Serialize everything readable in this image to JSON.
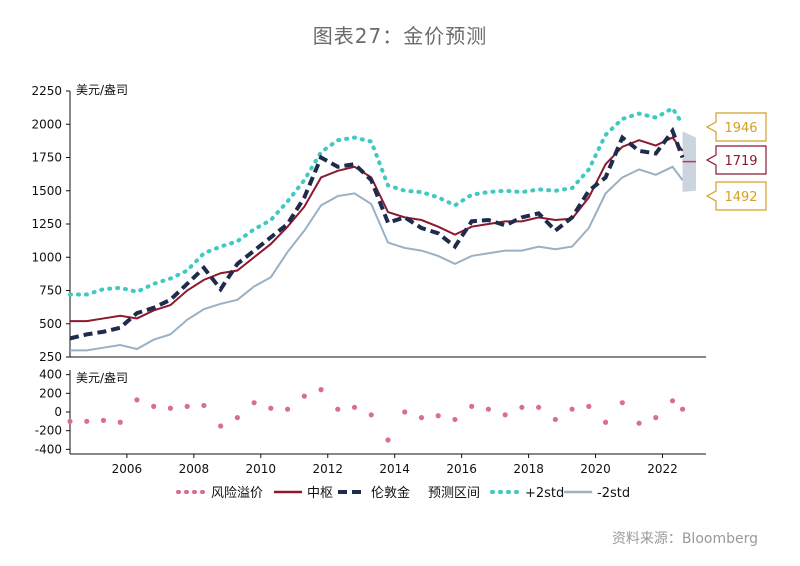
{
  "title": "图表27：金价预测",
  "source": "资料来源：Bloomberg",
  "chart_data": [
    {
      "type": "line",
      "unit_label": "美元/盎司",
      "ylim": [
        250,
        2250
      ],
      "yticks": [
        "2250",
        "2000",
        "1750",
        "1500",
        "1250",
        "1000",
        "750",
        "500",
        "250"
      ],
      "xlim": [
        2004.3,
        2023.3
      ],
      "xticks": [
        "2006",
        "2008",
        "2010",
        "2012",
        "2014",
        "2016",
        "2018",
        "2020",
        "2022"
      ],
      "x": [
        2004.3,
        2004.8,
        2005.3,
        2005.8,
        2006.3,
        2006.8,
        2007.3,
        2007.8,
        2008.3,
        2008.8,
        2009.3,
        2009.8,
        2010.3,
        2010.8,
        2011.3,
        2011.8,
        2012.3,
        2012.8,
        2013.3,
        2013.8,
        2014.3,
        2014.8,
        2015.3,
        2015.8,
        2016.3,
        2016.8,
        2017.3,
        2017.8,
        2018.3,
        2018.8,
        2019.3,
        2019.8,
        2020.3,
        2020.8,
        2021.3,
        2021.8,
        2022.3,
        2022.6
      ],
      "series": [
        {
          "name": "中枢",
          "color": "#8b1a2f",
          "style": "solid",
          "values": [
            520,
            520,
            540,
            560,
            540,
            600,
            640,
            750,
            830,
            880,
            900,
            1000,
            1100,
            1230,
            1380,
            1600,
            1650,
            1680,
            1600,
            1340,
            1300,
            1280,
            1230,
            1170,
            1230,
            1250,
            1270,
            1270,
            1300,
            1280,
            1290,
            1450,
            1700,
            1830,
            1880,
            1840,
            1900,
            1800
          ]
        },
        {
          "name": "伦敦金",
          "color": "#1f2b4d",
          "style": "dash",
          "values": [
            390,
            420,
            440,
            470,
            580,
            620,
            680,
            800,
            920,
            760,
            950,
            1050,
            1150,
            1250,
            1450,
            1750,
            1680,
            1700,
            1580,
            1260,
            1300,
            1220,
            1180,
            1080,
            1270,
            1280,
            1240,
            1300,
            1330,
            1200,
            1300,
            1500,
            1600,
            1900,
            1800,
            1780,
            1950,
            1750
          ]
        },
        {
          "name": "+2std",
          "color": "#40c9c0",
          "style": "dot",
          "values": [
            720,
            720,
            760,
            770,
            740,
            800,
            840,
            900,
            1030,
            1080,
            1120,
            1210,
            1280,
            1420,
            1580,
            1790,
            1880,
            1900,
            1870,
            1540,
            1500,
            1490,
            1450,
            1390,
            1470,
            1490,
            1500,
            1490,
            1510,
            1500,
            1520,
            1660,
            1920,
            2040,
            2080,
            2050,
            2120,
            2000
          ]
        },
        {
          "name": "-2std",
          "color": "#9ab1c4",
          "style": "solid",
          "values": [
            300,
            300,
            320,
            340,
            310,
            380,
            420,
            530,
            610,
            650,
            680,
            780,
            850,
            1040,
            1200,
            1390,
            1460,
            1480,
            1400,
            1110,
            1070,
            1050,
            1010,
            950,
            1010,
            1030,
            1050,
            1050,
            1080,
            1060,
            1080,
            1220,
            1480,
            1600,
            1660,
            1620,
            1680,
            1580
          ]
        }
      ],
      "forecast": {
        "label": "预测区间",
        "x": [
          2022.6,
          2023.0
        ],
        "upper": [
          1946,
          1900
        ],
        "lower": [
          1492,
          1500
        ],
        "mid": [
          1719,
          1719
        ],
        "color": "#b9c6d4",
        "callouts": [
          {
            "label": "1946",
            "value": 1946,
            "color": "#d4a028"
          },
          {
            "label": "1719",
            "value": 1719,
            "color": "#8b1a2f"
          },
          {
            "label": "1492",
            "value": 1492,
            "color": "#d4a028"
          }
        ]
      }
    },
    {
      "type": "scatter",
      "unit_label": "美元/盎司",
      "ylim": [
        -450,
        450
      ],
      "yticks": [
        "400",
        "200",
        "0",
        "-200",
        "-400"
      ],
      "series": [
        {
          "name": "风险溢价",
          "color": "#d9708a",
          "style": "dot",
          "x": [
            2004.3,
            2004.8,
            2005.3,
            2005.8,
            2006.3,
            2006.8,
            2007.3,
            2007.8,
            2008.3,
            2008.8,
            2009.3,
            2009.8,
            2010.3,
            2010.8,
            2011.3,
            2011.8,
            2012.3,
            2012.8,
            2013.3,
            2013.8,
            2014.3,
            2014.8,
            2015.3,
            2015.8,
            2016.3,
            2016.8,
            2017.3,
            2017.8,
            2018.3,
            2018.8,
            2019.3,
            2019.8,
            2020.3,
            2020.8,
            2021.3,
            2021.8,
            2022.3,
            2022.6
          ],
          "values": [
            -100,
            -100,
            -90,
            -110,
            130,
            60,
            40,
            60,
            70,
            -150,
            -60,
            100,
            40,
            30,
            170,
            240,
            30,
            50,
            -30,
            -300,
            0,
            -60,
            -40,
            -80,
            60,
            30,
            -30,
            50,
            50,
            -80,
            30,
            60,
            -110,
            100,
            -120,
            -60,
            120,
            30
          ]
        }
      ]
    }
  ],
  "legend": [
    "风险溢价",
    "中枢",
    "伦敦金",
    "预测区间",
    "+2std",
    "-2std"
  ]
}
